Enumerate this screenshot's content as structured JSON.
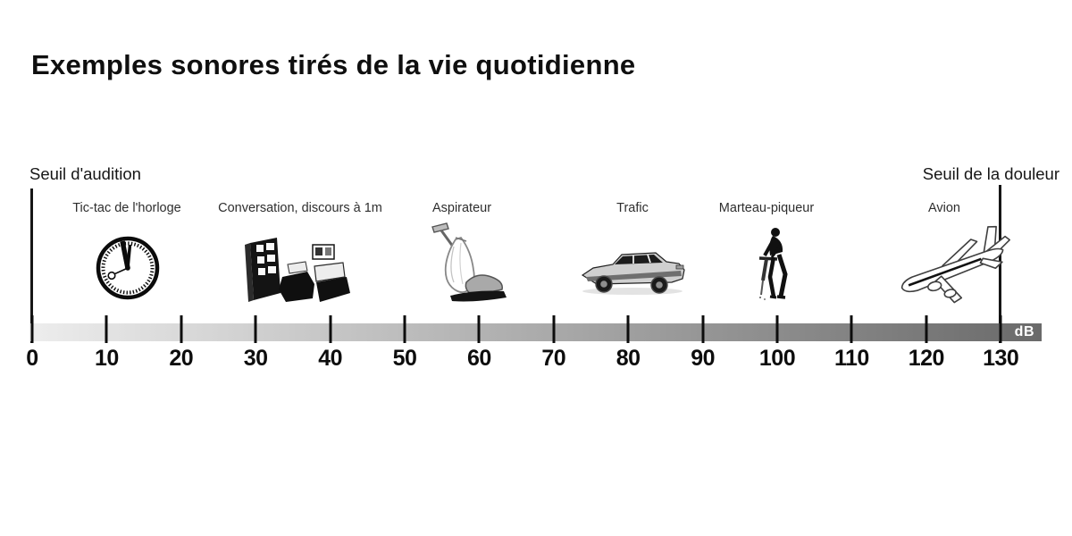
{
  "title": "Exemples sonores tirés de la vie quotidienne",
  "thresholds": {
    "left": "Seuil d'audition",
    "right": "Seuil de la douleur"
  },
  "scale": {
    "unit": "dB",
    "min": 0,
    "max": 130,
    "step": 10,
    "tick_labels": [
      "0",
      "10",
      "20",
      "30",
      "40",
      "50",
      "60",
      "70",
      "80",
      "90",
      "100",
      "110",
      "120",
      "130"
    ],
    "bar_gradient": [
      "#ededed",
      "#6a6a6a"
    ]
  },
  "items": [
    {
      "label": "Tic-tac de l'horloge",
      "icon": "clock-icon",
      "approx_db": 12
    },
    {
      "label": "Conversation, discours à 1m",
      "icon": "conversation-icon",
      "approx_db": 37
    },
    {
      "label": "Aspirateur",
      "icon": "vacuum-icon",
      "approx_db": 58
    },
    {
      "label": "Trafic",
      "icon": "car-icon",
      "approx_db": 81
    },
    {
      "label": "Marteau-piqueur",
      "icon": "jackhammer-icon",
      "approx_db": 100
    },
    {
      "label": "Avion",
      "icon": "airplane-icon",
      "approx_db": 124
    }
  ],
  "colors": {
    "text": "#111111",
    "line": "#161616",
    "unit_text": "#ffffff"
  }
}
